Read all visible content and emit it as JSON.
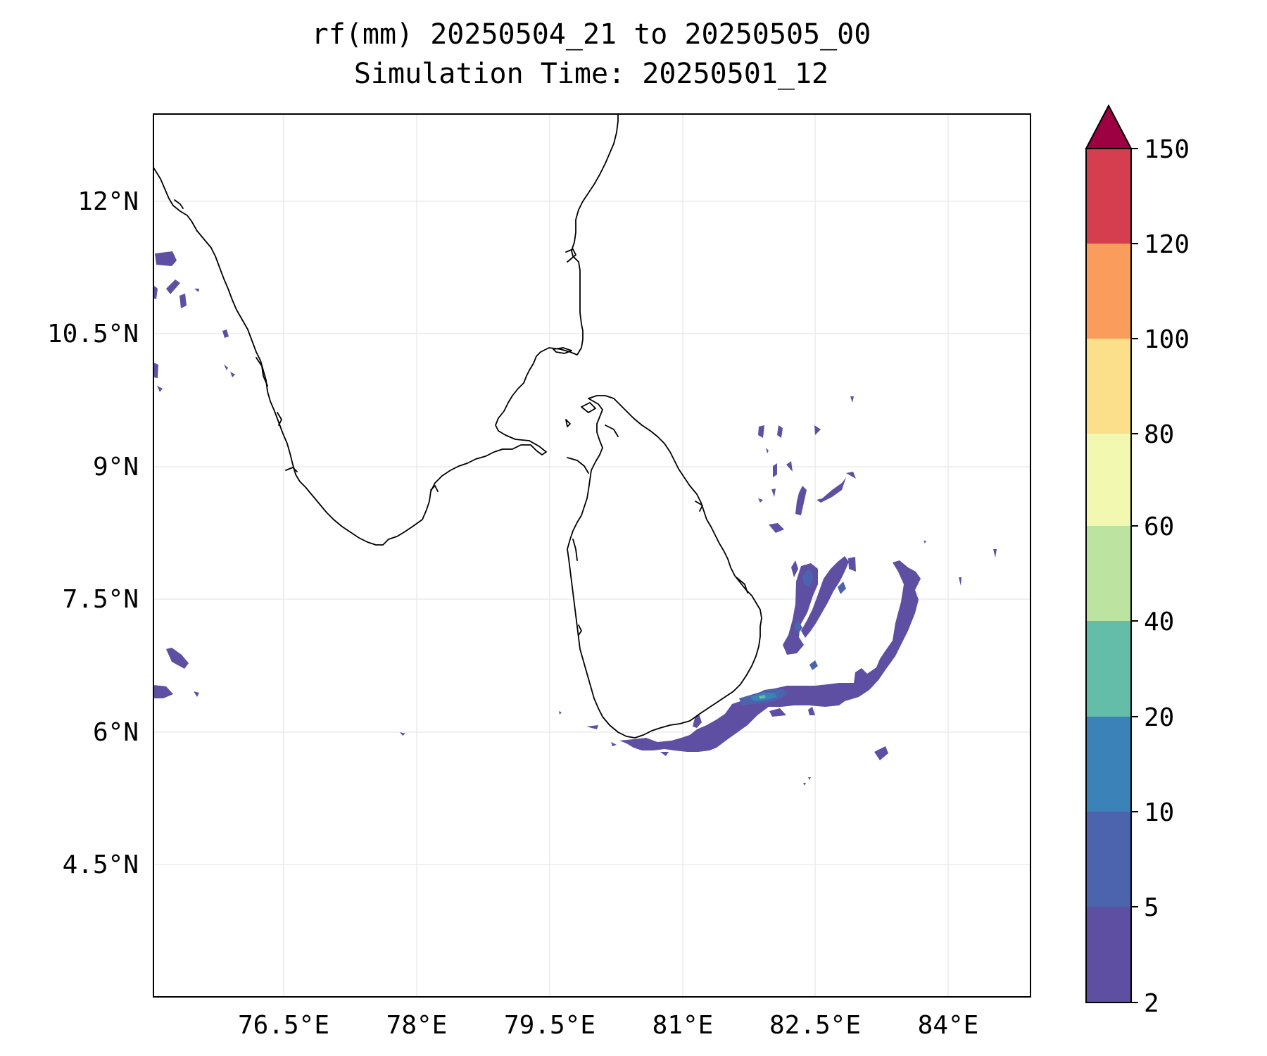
{
  "title": {
    "line1": "rf(mm) 20250504_21 to 20250505_00",
    "line2": "Simulation Time: 20250501_12"
  },
  "map": {
    "lon_range": [
      75.0,
      84.9
    ],
    "lat_range": [
      3.0,
      13.0
    ],
    "lat_ticks": [
      {
        "value": 12.0,
        "label": "12°N"
      },
      {
        "value": 10.5,
        "label": "10.5°N"
      },
      {
        "value": 9.0,
        "label": "9°N"
      },
      {
        "value": 7.5,
        "label": "7.5°N"
      },
      {
        "value": 6.0,
        "label": "6°N"
      },
      {
        "value": 4.5,
        "label": "4.5°N"
      }
    ],
    "lon_ticks": [
      {
        "value": 76.5,
        "label": "76.5°E"
      },
      {
        "value": 78.0,
        "label": "78°E"
      },
      {
        "value": 79.5,
        "label": "79.5°E"
      },
      {
        "value": 81.0,
        "label": "81°E"
      },
      {
        "value": 82.5,
        "label": "82.5°E"
      },
      {
        "value": 84.0,
        "label": "84°E"
      }
    ],
    "gridlines": true,
    "coastline_color": "#000000"
  },
  "colorbar": {
    "levels": [
      {
        "value": 2,
        "label": "2"
      },
      {
        "value": 5,
        "label": "5"
      },
      {
        "value": 10,
        "label": "10"
      },
      {
        "value": 20,
        "label": "20"
      },
      {
        "value": 40,
        "label": "40"
      },
      {
        "value": 60,
        "label": "60"
      },
      {
        "value": 80,
        "label": "80"
      },
      {
        "value": 100,
        "label": "100"
      },
      {
        "value": 120,
        "label": "120"
      },
      {
        "value": 150,
        "label": "150"
      }
    ],
    "colors": [
      "#5e4fa2",
      "#4c63ad",
      "#3a82b8",
      "#64bda9",
      "#bce3a0",
      "#f2f8b0",
      "#fcdf8a",
      "#f99c5c",
      "#d53e4f"
    ],
    "extend_color": "#9e0142",
    "extend": "max"
  }
}
